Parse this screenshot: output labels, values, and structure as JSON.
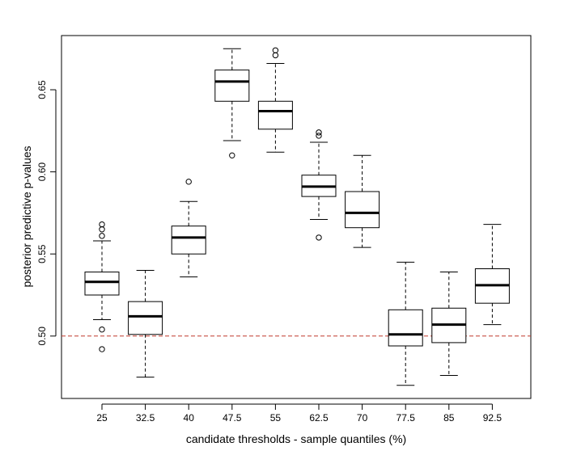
{
  "chart_data": {
    "type": "boxplot",
    "title": "",
    "xlabel": "candidate thresholds - sample quantiles (%)",
    "ylabel": "posterior predictive p-values",
    "ylim": [
      0.462,
      0.683
    ],
    "yticks": [
      0.5,
      0.55,
      0.6,
      0.65
    ],
    "ytick_labels": [
      "0.50",
      "0.55",
      "0.60",
      "0.65"
    ],
    "reference_line": {
      "y": 0.5,
      "color": "#c0392b",
      "style": "dashed"
    },
    "categories": [
      "25",
      "32.5",
      "40",
      "47.5",
      "55",
      "62.5",
      "70",
      "77.5",
      "85",
      "92.5"
    ],
    "boxes": [
      {
        "label": "25",
        "whisker_low": 0.51,
        "q1": 0.525,
        "median": 0.533,
        "q3": 0.539,
        "whisker_high": 0.558,
        "outliers": [
          0.568,
          0.565,
          0.561,
          0.504,
          0.492
        ]
      },
      {
        "label": "32.5",
        "whisker_low": 0.475,
        "q1": 0.501,
        "median": 0.512,
        "q3": 0.521,
        "whisker_high": 0.54,
        "outliers": []
      },
      {
        "label": "40",
        "whisker_low": 0.536,
        "q1": 0.55,
        "median": 0.56,
        "q3": 0.567,
        "whisker_high": 0.582,
        "outliers": [
          0.594
        ]
      },
      {
        "label": "47.5",
        "whisker_low": 0.619,
        "q1": 0.643,
        "median": 0.655,
        "q3": 0.662,
        "whisker_high": 0.675,
        "outliers": [
          0.61
        ]
      },
      {
        "label": "55",
        "whisker_low": 0.612,
        "q1": 0.626,
        "median": 0.637,
        "q3": 0.643,
        "whisker_high": 0.666,
        "outliers": [
          0.674,
          0.671
        ]
      },
      {
        "label": "62.5",
        "whisker_low": 0.571,
        "q1": 0.585,
        "median": 0.591,
        "q3": 0.598,
        "whisker_high": 0.618,
        "outliers": [
          0.624,
          0.622,
          0.56
        ]
      },
      {
        "label": "70",
        "whisker_low": 0.554,
        "q1": 0.566,
        "median": 0.575,
        "q3": 0.588,
        "whisker_high": 0.61,
        "outliers": []
      },
      {
        "label": "77.5",
        "whisker_low": 0.47,
        "q1": 0.494,
        "median": 0.501,
        "q3": 0.516,
        "whisker_high": 0.545,
        "outliers": []
      },
      {
        "label": "85",
        "whisker_low": 0.476,
        "q1": 0.496,
        "median": 0.507,
        "q3": 0.517,
        "whisker_high": 0.539,
        "outliers": []
      },
      {
        "label": "92.5",
        "whisker_low": 0.507,
        "q1": 0.52,
        "median": 0.531,
        "q3": 0.541,
        "whisker_high": 0.568,
        "outliers": []
      }
    ]
  }
}
